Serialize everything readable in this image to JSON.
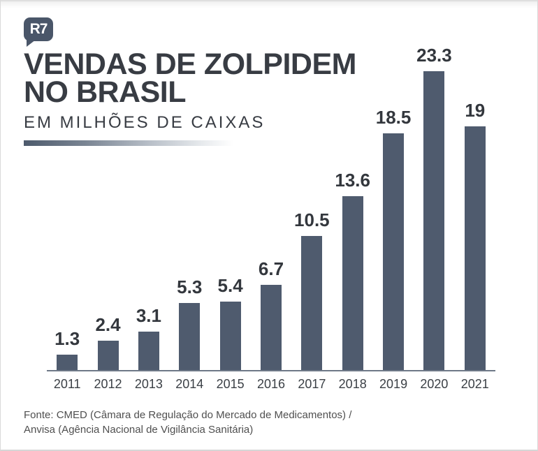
{
  "brand": {
    "logo_text": "R7"
  },
  "header": {
    "title_line1": "VENDAS DE ZOLPIDEM",
    "title_line2": "NO BRASIL",
    "subtitle": "EM MILHÕES DE CAIXAS"
  },
  "chart_data": {
    "type": "bar",
    "title": "VENDAS DE ZOLPIDEM NO BRASIL",
    "subtitle": "EM MILHÕES DE CAIXAS",
    "unit": "milhões de caixas",
    "categories": [
      "2011",
      "2012",
      "2013",
      "2014",
      "2015",
      "2016",
      "2017",
      "2018",
      "2019",
      "2020",
      "2021"
    ],
    "values": [
      1.3,
      2.4,
      3.1,
      5.3,
      5.4,
      6.7,
      10.5,
      13.6,
      18.5,
      23.3,
      19
    ],
    "ylim": [
      0,
      25
    ],
    "grid": false,
    "data_labels": true,
    "legend": "none",
    "bar_color": "#4f5b6e",
    "value_label_color": "#33373d",
    "axis_color": "#6e7887"
  },
  "footer": {
    "source_line1": "Fonte: CMED (Câmara de Regulação do Mercado de Medicamentos) /",
    "source_line2": "Anvisa (Agência Nacional de Vigilância Sanitária)"
  }
}
